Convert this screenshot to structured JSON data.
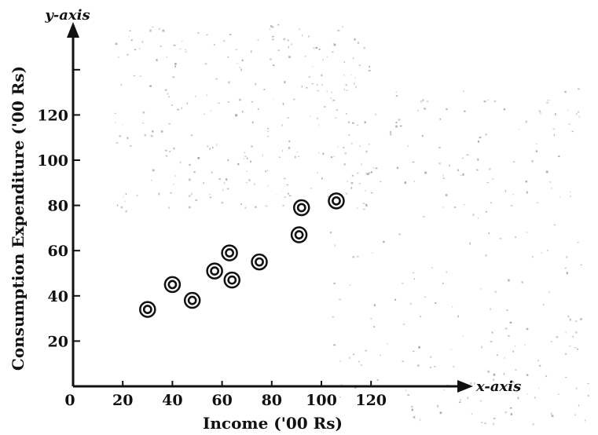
{
  "chart_data": {
    "type": "scatter",
    "title": "",
    "xlabel": "Income ('00 Rs)",
    "ylabel": "Consumption Expenditure ('00 Rs)",
    "x_axis_end_label": "x-axis",
    "y_axis_end_label": "y-axis",
    "origin_label": "0",
    "xlim": [
      0,
      160
    ],
    "ylim": [
      0,
      150
    ],
    "x_ticks": [
      20,
      40,
      60,
      80,
      100,
      120
    ],
    "y_ticks": [
      20,
      40,
      60,
      80,
      100,
      120
    ],
    "grid": false,
    "points": [
      {
        "x": 30,
        "y": 34
      },
      {
        "x": 40,
        "y": 45
      },
      {
        "x": 48,
        "y": 38
      },
      {
        "x": 57,
        "y": 51
      },
      {
        "x": 63,
        "y": 59
      },
      {
        "x": 64,
        "y": 47
      },
      {
        "x": 75,
        "y": 55
      },
      {
        "x": 91,
        "y": 67
      },
      {
        "x": 92,
        "y": 79
      },
      {
        "x": 106,
        "y": 82
      }
    ]
  }
}
